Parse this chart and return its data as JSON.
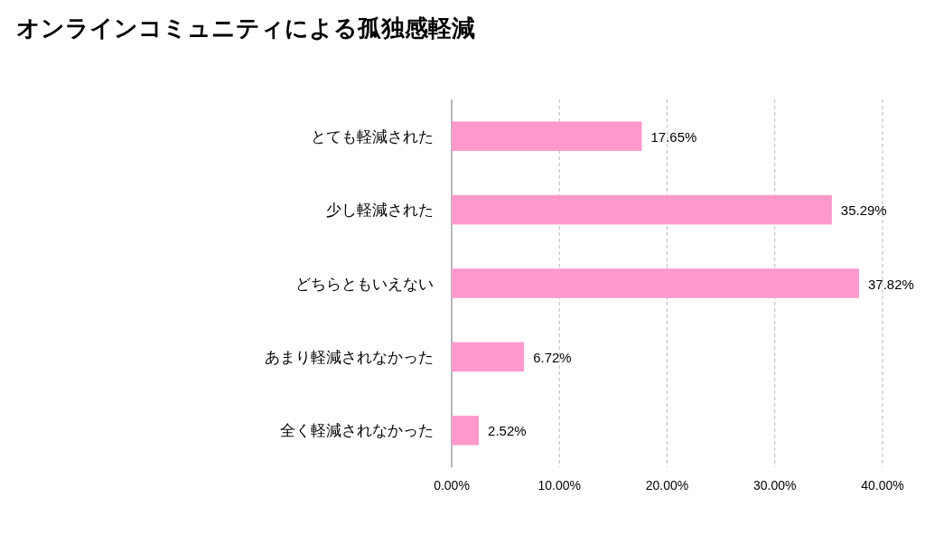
{
  "chart_data": {
    "type": "bar",
    "orientation": "horizontal",
    "title": "オンラインコミュニティによる孤独感軽減",
    "categories": [
      "とても軽減された",
      "少し軽減された",
      "どちらともいえない",
      "あまり軽減されなかった",
      "全く軽減されなかった"
    ],
    "values": [
      17.65,
      35.29,
      37.82,
      6.72,
      2.52
    ],
    "value_labels": [
      "17.65%",
      "35.29%",
      "37.82%",
      "6.72%",
      "2.52%"
    ],
    "color": "#ff99cc",
    "xlim": [
      0,
      40
    ],
    "xticks": [
      {
        "value": 0,
        "label": "0.00%"
      },
      {
        "value": 10,
        "label": "10.00%"
      },
      {
        "value": 20,
        "label": "20.00%"
      },
      {
        "value": 30,
        "label": "30.00%"
      },
      {
        "value": 40,
        "label": "40.00%"
      }
    ],
    "grid": "x"
  }
}
